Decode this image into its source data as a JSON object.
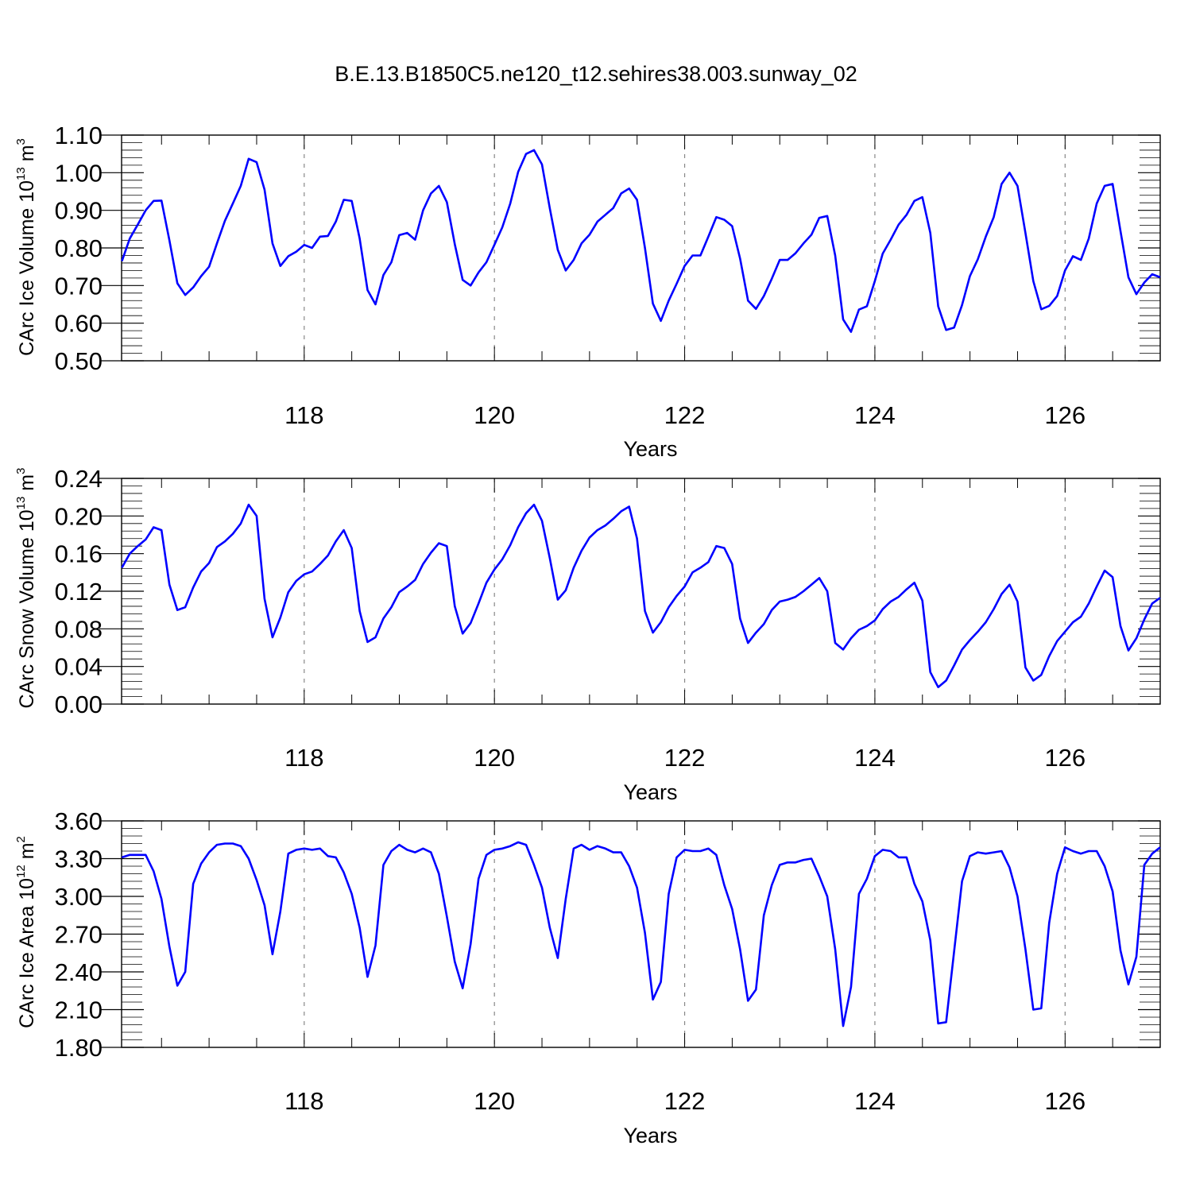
{
  "title": "B.E.13.B1850C5.ne120_t12.sehires38.003.sunway_02",
  "chart_data": [
    {
      "type": "line",
      "xlabel": "Years",
      "ylabel": {
        "prefix": "CArc Ice Volume 10",
        "exponent": "13",
        "unit": " m",
        "unit_exponent": "3"
      },
      "xlim": [
        116.08,
        127.0
      ],
      "ylim": [
        0.5,
        1.1
      ],
      "x_ticks": [
        "118",
        "120",
        "122",
        "124",
        "126"
      ],
      "y_ticks": [
        "0.50",
        "0.60",
        "0.70",
        "0.80",
        "0.90",
        "1.00",
        "1.10"
      ],
      "grid": "vertical dashed at major x ticks",
      "line_color": "#0000ff",
      "series": [
        {
          "x_start": 116.083,
          "x_step": 0.08333,
          "values": [
            0.765,
            0.825,
            0.862,
            0.9,
            0.925,
            0.926,
            0.82,
            0.706,
            0.675,
            0.695,
            0.725,
            0.75,
            0.812,
            0.872,
            0.918,
            0.965,
            1.037,
            1.028,
            0.955,
            0.812,
            0.752,
            0.778,
            0.79,
            0.808,
            0.8,
            0.83,
            0.832,
            0.87,
            0.928,
            0.925,
            0.825,
            0.688,
            0.65,
            0.728,
            0.762,
            0.834,
            0.84,
            0.822,
            0.9,
            0.945,
            0.965,
            0.922,
            0.81,
            0.715,
            0.7,
            0.735,
            0.762,
            0.808,
            0.855,
            0.918,
            1.002,
            1.05,
            1.06,
            1.022,
            0.905,
            0.795,
            0.74,
            0.768,
            0.812,
            0.835,
            0.87,
            0.888,
            0.906,
            0.945,
            0.958,
            0.928,
            0.8,
            0.652,
            0.606,
            0.66,
            0.705,
            0.752,
            0.78,
            0.78,
            0.83,
            0.882,
            0.875,
            0.858,
            0.772,
            0.66,
            0.638,
            0.672,
            0.718,
            0.768,
            0.768,
            0.786,
            0.812,
            0.835,
            0.88,
            0.885,
            0.78,
            0.61,
            0.577,
            0.636,
            0.645,
            0.712,
            0.785,
            0.822,
            0.862,
            0.888,
            0.925,
            0.935,
            0.84,
            0.645,
            0.582,
            0.588,
            0.648,
            0.725,
            0.77,
            0.83,
            0.882,
            0.97,
            1.0,
            0.965,
            0.84,
            0.712,
            0.637,
            0.646,
            0.672,
            0.74,
            0.778,
            0.768,
            0.825,
            0.918,
            0.965,
            0.97,
            0.845,
            0.722,
            0.677,
            0.708,
            0.73,
            0.722
          ]
        }
      ]
    },
    {
      "type": "line",
      "xlabel": "Years",
      "ylabel": {
        "prefix": "CArc Snow Volume 10",
        "exponent": "13",
        "unit": " m",
        "unit_exponent": "3"
      },
      "xlim": [
        116.08,
        127.0
      ],
      "ylim": [
        0.0,
        0.24
      ],
      "x_ticks": [
        "118",
        "120",
        "122",
        "124",
        "126"
      ],
      "y_ticks": [
        "0.00",
        "0.04",
        "0.08",
        "0.12",
        "0.16",
        "0.20",
        "0.24"
      ],
      "grid": "vertical dashed at major x ticks",
      "line_color": "#0000ff",
      "series": [
        {
          "x_start": 116.083,
          "x_step": 0.08333,
          "values": [
            0.145,
            0.16,
            0.168,
            0.175,
            0.188,
            0.185,
            0.127,
            0.1,
            0.103,
            0.124,
            0.141,
            0.15,
            0.167,
            0.173,
            0.181,
            0.192,
            0.212,
            0.2,
            0.112,
            0.071,
            0.092,
            0.119,
            0.131,
            0.138,
            0.141,
            0.149,
            0.158,
            0.173,
            0.185,
            0.166,
            0.099,
            0.066,
            0.071,
            0.091,
            0.103,
            0.119,
            0.125,
            0.132,
            0.149,
            0.161,
            0.171,
            0.168,
            0.104,
            0.075,
            0.086,
            0.107,
            0.129,
            0.143,
            0.154,
            0.169,
            0.188,
            0.203,
            0.212,
            0.195,
            0.155,
            0.111,
            0.121,
            0.145,
            0.163,
            0.177,
            0.185,
            0.19,
            0.197,
            0.205,
            0.21,
            0.176,
            0.099,
            0.076,
            0.087,
            0.103,
            0.115,
            0.125,
            0.14,
            0.145,
            0.151,
            0.168,
            0.166,
            0.149,
            0.091,
            0.065,
            0.076,
            0.085,
            0.1,
            0.109,
            0.111,
            0.114,
            0.12,
            0.127,
            0.134,
            0.12,
            0.065,
            0.058,
            0.07,
            0.079,
            0.083,
            0.089,
            0.101,
            0.109,
            0.114,
            0.122,
            0.129,
            0.11,
            0.034,
            0.018,
            0.025,
            0.041,
            0.058,
            0.068,
            0.077,
            0.087,
            0.101,
            0.117,
            0.127,
            0.109,
            0.039,
            0.025,
            0.031,
            0.051,
            0.067,
            0.077,
            0.087,
            0.093,
            0.107,
            0.125,
            0.142,
            0.135,
            0.083,
            0.057,
            0.07,
            0.09,
            0.107,
            0.113
          ]
        }
      ]
    },
    {
      "type": "line",
      "xlabel": "Years",
      "ylabel": {
        "prefix": "CArc Ice Area 10",
        "exponent": "12",
        "unit": " m",
        "unit_exponent": "2"
      },
      "xlim": [
        116.08,
        127.0
      ],
      "ylim": [
        1.8,
        3.6
      ],
      "x_ticks": [
        "118",
        "120",
        "122",
        "124",
        "126"
      ],
      "y_ticks": [
        "1.80",
        "2.10",
        "2.40",
        "2.70",
        "3.00",
        "3.30",
        "3.60"
      ],
      "grid": "vertical dashed at major x ticks",
      "line_color": "#0000ff",
      "series": [
        {
          "x_start": 116.083,
          "x_step": 0.08333,
          "values": [
            3.31,
            3.33,
            3.33,
            3.33,
            3.2,
            2.98,
            2.6,
            2.29,
            2.4,
            3.1,
            3.26,
            3.35,
            3.41,
            3.42,
            3.42,
            3.4,
            3.3,
            3.13,
            2.93,
            2.54,
            2.88,
            3.34,
            3.37,
            3.38,
            3.37,
            3.38,
            3.32,
            3.31,
            3.19,
            3.02,
            2.75,
            2.36,
            2.61,
            3.25,
            3.36,
            3.41,
            3.37,
            3.35,
            3.38,
            3.35,
            3.18,
            2.84,
            2.48,
            2.27,
            2.62,
            3.14,
            3.33,
            3.37,
            3.38,
            3.4,
            3.43,
            3.41,
            3.25,
            3.07,
            2.75,
            2.51,
            2.98,
            3.38,
            3.41,
            3.37,
            3.4,
            3.38,
            3.35,
            3.35,
            3.24,
            3.07,
            2.71,
            2.18,
            2.32,
            3.02,
            3.31,
            3.37,
            3.36,
            3.36,
            3.38,
            3.33,
            3.09,
            2.9,
            2.58,
            2.17,
            2.26,
            2.85,
            3.09,
            3.25,
            3.27,
            3.27,
            3.29,
            3.3,
            3.16,
            3.0,
            2.58,
            1.97,
            2.28,
            3.02,
            3.14,
            3.32,
            3.37,
            3.36,
            3.31,
            3.31,
            3.1,
            2.96,
            2.65,
            1.99,
            2.0,
            2.56,
            3.12,
            3.32,
            3.35,
            3.34,
            3.35,
            3.36,
            3.23,
            3.0,
            2.58,
            2.1,
            2.11,
            2.79,
            3.18,
            3.39,
            3.36,
            3.34,
            3.36,
            3.36,
            3.24,
            3.04,
            2.57,
            2.3,
            2.52,
            3.25,
            3.34,
            3.39
          ]
        }
      ]
    }
  ]
}
